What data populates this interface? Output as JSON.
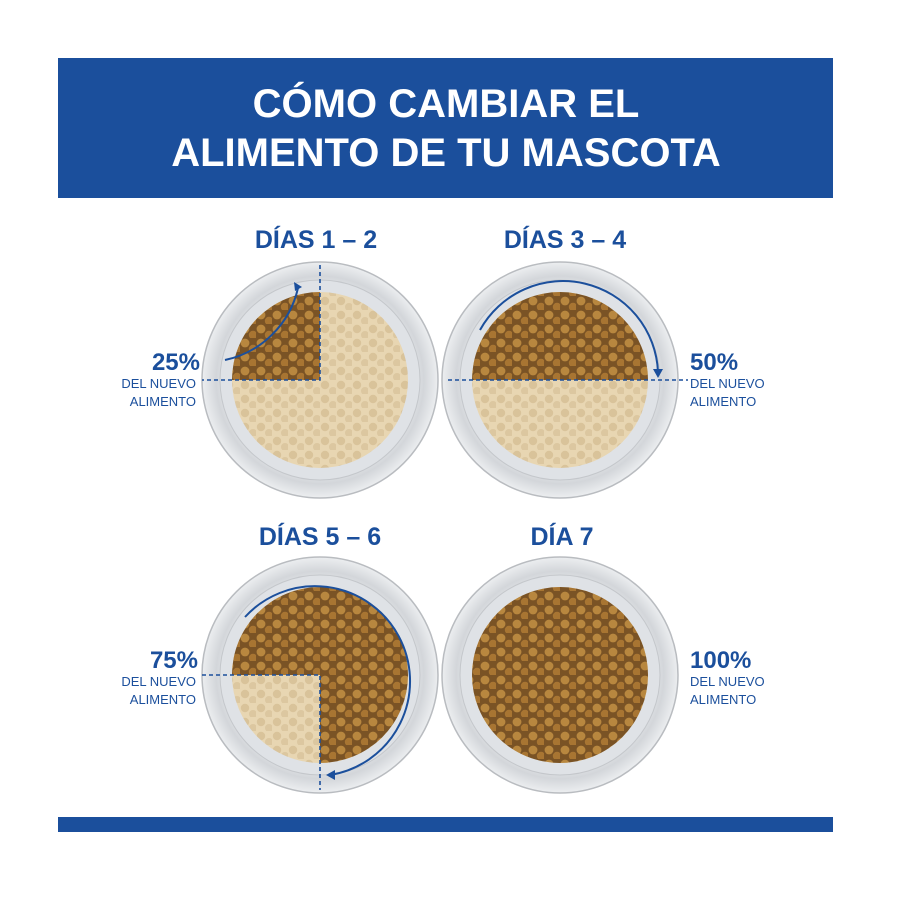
{
  "header": {
    "title": [
      "CÓMO CAMBIAR EL",
      "ALIMENTO DE TU MASCOTA"
    ]
  },
  "panels": [
    {
      "title": "DÍAS 1 – 2",
      "percent": "25%",
      "label": [
        "DEL NUEVO",
        "ALIMENTO"
      ]
    },
    {
      "title": "DÍAS 3 – 4",
      "percent": "50%",
      "label": [
        "DEL NUEVO",
        "ALIMENTO"
      ]
    },
    {
      "title": "DÍAS 5 – 6",
      "percent": "75%",
      "label": [
        "DEL NUEVO",
        "ALIMENTO"
      ]
    },
    {
      "title": "DÍA 7",
      "percent": "100%",
      "label": [
        "DEL NUEVO",
        "ALIMENTO"
      ]
    }
  ]
}
